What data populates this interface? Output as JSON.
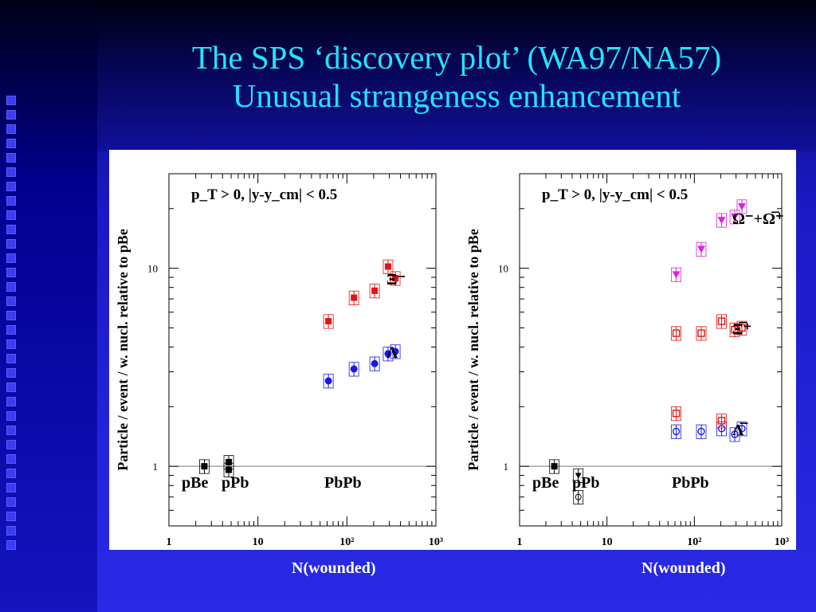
{
  "slide": {
    "title_line1": "The SPS ‘discovery plot’ (WA97/NA57)",
    "title_line2": "Unusual strangeness enhancement"
  },
  "colors": {
    "title": "#22e4ff",
    "red": "#e41414",
    "blue": "#1a1ae6",
    "magenta": "#e020e0",
    "black": "#000000"
  },
  "chart_data": [
    {
      "type": "scatter",
      "log_x": true,
      "log_y": true,
      "xlim": [
        1,
        1000
      ],
      "ylim": [
        0.5,
        30
      ],
      "ylabel": "Particle / event / w. nucl. relative to pBe",
      "xlabel": "N(wounded)",
      "x_tick_labels": [
        "1",
        "10",
        "10²",
        "10³"
      ],
      "y_tick_labels": [
        "1",
        "10"
      ],
      "cut_label": "p_T > 0,  |y-y_cm| < 0.5",
      "system_labels": [
        "pBe",
        "pPb",
        "PbPb"
      ],
      "series": [
        {
          "name": "Ξ⁻",
          "color": "red",
          "marker": "square",
          "x": [
            62,
            120,
            205,
            290,
            350
          ],
          "y": [
            5.4,
            7.1,
            7.7,
            10.2,
            8.9
          ]
        },
        {
          "name": "Λ",
          "color": "blue",
          "marker": "circle",
          "x": [
            62,
            120,
            205,
            290,
            350
          ],
          "y": [
            2.7,
            3.1,
            3.3,
            3.7,
            3.8
          ]
        },
        {
          "name": "",
          "color": "black",
          "marker": "square",
          "x": [
            2.5,
            4.7,
            4.7
          ],
          "y": [
            1.0,
            1.05,
            0.96
          ]
        }
      ]
    },
    {
      "type": "scatter",
      "log_x": true,
      "log_y": true,
      "xlim": [
        1,
        1000
      ],
      "ylim": [
        0.5,
        30
      ],
      "ylabel": "Particle / event / w. nucl. relative to pBe",
      "xlabel": "N(wounded)",
      "x_tick_labels": [
        "1",
        "10",
        "10²",
        "10³"
      ],
      "y_tick_labels": [
        "1",
        "10"
      ],
      "cut_label": "p_T > 0,  |y-y_cm| < 0.5",
      "system_labels": [
        "pBe",
        "pPb",
        "PbPb"
      ],
      "series": [
        {
          "name": "Ω⁻+Ω̅⁺",
          "color": "magenta",
          "marker": "triangle-down",
          "x": [
            62,
            120,
            205,
            290,
            350
          ],
          "y": [
            9.3,
            12.5,
            17.5,
            18.2,
            20.5
          ]
        },
        {
          "name": "Ξ̅⁺",
          "color": "red",
          "marker": "open-square",
          "x": [
            62,
            120,
            205,
            290,
            350
          ],
          "y": [
            4.7,
            4.7,
            5.4,
            4.9,
            5.0
          ]
        },
        {
          "name": "Λ̅",
          "color": "blue",
          "marker": "open-circle",
          "x": [
            62,
            120,
            205,
            290,
            350
          ],
          "y": [
            1.5,
            1.5,
            1.55,
            1.45,
            1.55
          ]
        },
        {
          "name": "",
          "color": "red",
          "marker": "open-square",
          "x": [
            62,
            205
          ],
          "y": [
            1.85,
            1.7
          ]
        },
        {
          "name": "",
          "color": "black",
          "marker": "mixed",
          "x": [
            2.5,
            4.7,
            4.7
          ],
          "y": [
            1.0,
            0.9,
            0.7
          ]
        }
      ]
    }
  ]
}
